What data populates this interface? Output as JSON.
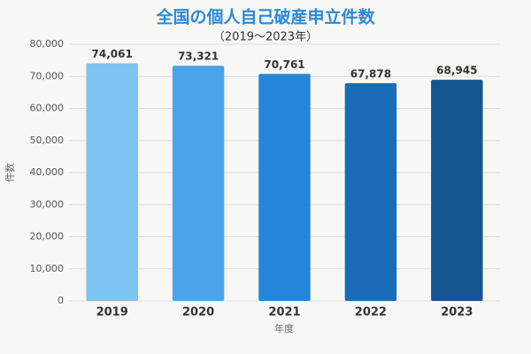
{
  "chart_data": {
    "type": "bar",
    "title": "全国の個人自己破産申立件数",
    "subtitle": "（2019〜2023年）",
    "x_label": "年度",
    "y_label": "件数",
    "categories": [
      "2019",
      "2020",
      "2021",
      "2022",
      "2023"
    ],
    "values": [
      74061,
      73321,
      70761,
      67878,
      68945
    ],
    "value_labels": [
      "74,061",
      "73,321",
      "70,761",
      "67,878",
      "68,945"
    ],
    "colors": [
      "#7cc3f0",
      "#4ba3e8",
      "#2486d8",
      "#1a6cb8",
      "#145591"
    ],
    "ylim": [
      0,
      80000
    ],
    "yticks": [
      0,
      {
        "value": 10000,
        "label": "10,000"
      },
      {
        "value": 20000,
        "label": "20,000"
      },
      {
        "value": 30000,
        "label": "30,000"
      },
      {
        "value": 40000,
        "label": "40,000"
      },
      {
        "value": 50000,
        "label": "50,000"
      },
      {
        "value": 60000,
        "label": "60,000"
      },
      {
        "value": 70000,
        "label": "70,000"
      },
      {
        "value": 80000,
        "label": "80,000"
      }
    ],
    "grid": true
  }
}
